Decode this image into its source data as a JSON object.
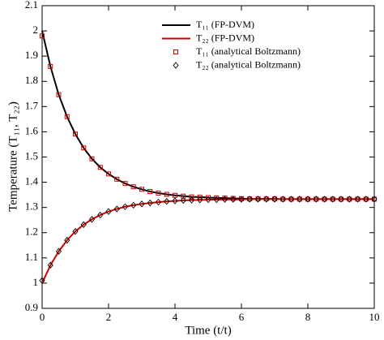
{
  "chart_data": {
    "type": "line",
    "x_label": "Time (t/t)",
    "y_label": "Temperature (T₁₁, T₂₂)",
    "x": [
      0,
      0.25,
      0.5,
      0.75,
      1,
      1.25,
      1.5,
      1.75,
      2,
      2.25,
      2.5,
      2.75,
      3,
      3.25,
      3.5,
      3.75,
      4,
      4.25,
      4.5,
      4.75,
      5,
      5.25,
      5.5,
      5.75,
      6,
      6.25,
      6.5,
      6.75,
      7,
      7.25,
      7.5,
      7.75,
      8,
      8.25,
      8.5,
      8.75,
      9,
      9.25,
      9.5,
      9.75,
      10
    ],
    "series": [
      {
        "name": "T₁₁ (FP-DVM)",
        "color": "#000000",
        "marker": "line",
        "values": [
          2.0,
          1.859,
          1.747,
          1.66,
          1.591,
          1.536,
          1.493,
          1.459,
          1.433,
          1.412,
          1.395,
          1.382,
          1.372,
          1.363,
          1.357,
          1.352,
          1.348,
          1.345,
          1.342,
          1.341,
          1.339,
          1.338,
          1.337,
          1.336,
          1.335,
          1.334,
          1.334,
          1.334,
          1.334,
          1.333,
          1.333,
          1.333,
          1.333,
          1.333,
          1.333,
          1.333,
          1.333,
          1.333,
          1.333,
          1.333,
          1.333
        ]
      },
      {
        "name": "T₂₂ (FP-DVM)",
        "color": "#cc0000",
        "marker": "line",
        "values": [
          1.0,
          1.071,
          1.126,
          1.17,
          1.205,
          1.232,
          1.253,
          1.27,
          1.284,
          1.294,
          1.303,
          1.309,
          1.314,
          1.318,
          1.321,
          1.324,
          1.326,
          1.328,
          1.329,
          1.33,
          1.331,
          1.331,
          1.332,
          1.332,
          1.332,
          1.333,
          1.333,
          1.333,
          1.333,
          1.333,
          1.333,
          1.333,
          1.333,
          1.333,
          1.333,
          1.333,
          1.333,
          1.333,
          1.333,
          1.333,
          1.333
        ]
      },
      {
        "name": "T₁₁ (analytical Boltzmann)",
        "color": "#cc0000",
        "marker": "square",
        "values": [
          1.98,
          1.859,
          1.747,
          1.66,
          1.591,
          1.536,
          1.493,
          1.459,
          1.433,
          1.412,
          1.395,
          1.382,
          1.372,
          1.363,
          1.357,
          1.352,
          1.348,
          1.345,
          1.342,
          1.341,
          1.339,
          1.338,
          1.337,
          1.336,
          1.335,
          1.334,
          1.334,
          1.334,
          1.334,
          1.333,
          1.333,
          1.333,
          1.333,
          1.333,
          1.333,
          1.333,
          1.333,
          1.333,
          1.333,
          1.333,
          1.333
        ]
      },
      {
        "name": "T₂₂ (analytical Boltzmann)",
        "color": "#000000",
        "marker": "diamond",
        "values": [
          1.01,
          1.071,
          1.126,
          1.17,
          1.205,
          1.232,
          1.253,
          1.27,
          1.284,
          1.294,
          1.303,
          1.309,
          1.314,
          1.318,
          1.321,
          1.324,
          1.326,
          1.328,
          1.329,
          1.33,
          1.331,
          1.331,
          1.332,
          1.332,
          1.332,
          1.333,
          1.333,
          1.333,
          1.333,
          1.333,
          1.333,
          1.333,
          1.333,
          1.333,
          1.333,
          1.333,
          1.333,
          1.333,
          1.333,
          1.333,
          1.333
        ]
      }
    ],
    "xlim": [
      0,
      10
    ],
    "xticks": [
      0,
      2,
      4,
      6,
      8,
      10
    ],
    "ylim": [
      0.9,
      2.1
    ],
    "yticks": [
      0.9,
      1,
      1.1,
      1.2,
      1.3,
      1.4,
      1.5,
      1.6,
      1.7,
      1.8,
      1.9,
      2,
      2.1
    ],
    "legend": "upper right"
  }
}
